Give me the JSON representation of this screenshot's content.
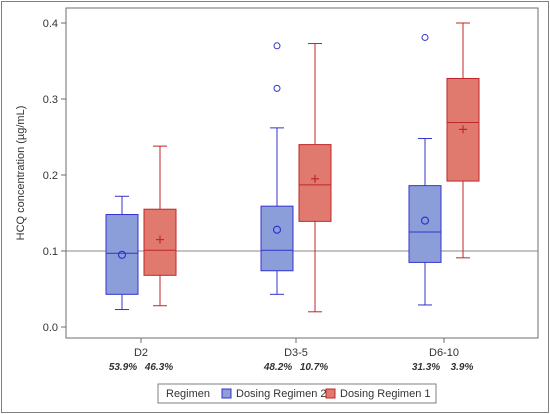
{
  "chart_data": {
    "type": "box",
    "ylabel": "HCQ concentration (µg/mL)",
    "xlabel": "",
    "ylim": [
      0.0,
      0.4
    ],
    "yticks": [
      "0.0",
      "0.1",
      "0.2",
      "0.3",
      "0.4"
    ],
    "reference_line": 0.1,
    "categories": [
      "D2",
      "D3-5",
      "D6-10"
    ],
    "percent_labels": [
      [
        "53.9%",
        "46.3%"
      ],
      [
        "48.2%",
        "10.7%"
      ],
      [
        "31.3%",
        "3.9%"
      ]
    ],
    "legend": {
      "title": "Regimen",
      "position": "bottom",
      "entries": [
        "Dosing Regimen 2",
        "Dosing Regimen 1"
      ]
    },
    "series": [
      {
        "name": "Dosing Regimen 2",
        "fill": "#8c9ed9",
        "stroke": "#3333cc",
        "mean_marker": "circle",
        "boxes": [
          {
            "category": "D2",
            "whisker_low": 0.023,
            "q1": 0.043,
            "median": 0.097,
            "q3": 0.148,
            "whisker_high": 0.172,
            "mean": 0.095,
            "outliers": []
          },
          {
            "category": "D3-5",
            "whisker_low": 0.043,
            "q1": 0.074,
            "median": 0.101,
            "q3": 0.159,
            "whisker_high": 0.262,
            "mean": 0.128,
            "outliers": [
              0.314,
              0.37
            ]
          },
          {
            "category": "D6-10",
            "whisker_low": 0.029,
            "q1": 0.085,
            "median": 0.125,
            "q3": 0.186,
            "whisker_high": 0.248,
            "mean": 0.14,
            "outliers": [
              0.381
            ]
          }
        ]
      },
      {
        "name": "Dosing Regimen 1",
        "fill": "#e07a6e",
        "stroke": "#c0262a",
        "mean_marker": "plus",
        "boxes": [
          {
            "category": "D2",
            "whisker_low": 0.028,
            "q1": 0.068,
            "median": 0.101,
            "q3": 0.155,
            "whisker_high": 0.238,
            "mean": 0.115,
            "outliers": []
          },
          {
            "category": "D3-5",
            "whisker_low": 0.02,
            "q1": 0.139,
            "median": 0.187,
            "q3": 0.24,
            "whisker_high": 0.373,
            "mean": 0.195,
            "outliers": []
          },
          {
            "category": "D6-10",
            "whisker_low": 0.091,
            "q1": 0.192,
            "median": 0.269,
            "q3": 0.327,
            "whisker_high": 0.4,
            "mean": 0.26,
            "outliers": []
          }
        ]
      }
    ]
  }
}
